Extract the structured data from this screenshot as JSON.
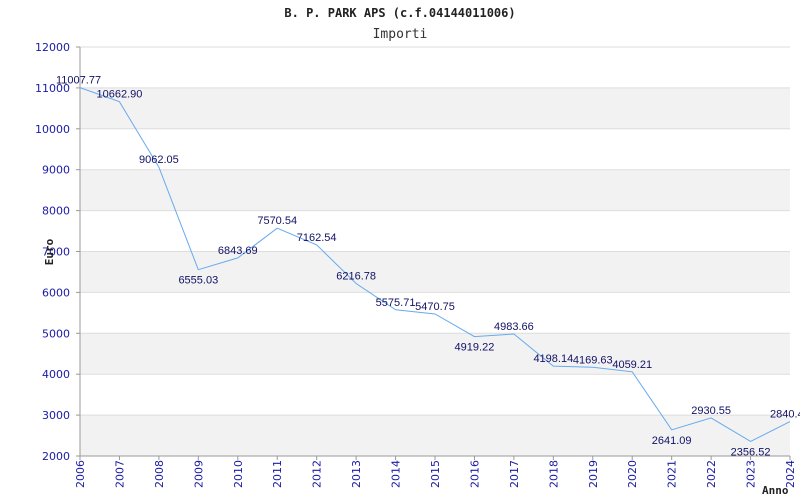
{
  "chart_data": {
    "type": "line",
    "title": "B. P. PARK APS (c.f.04144011006)",
    "subtitle": "Importi",
    "xlabel": "Anno",
    "ylabel": "Euro",
    "categories": [
      "2006",
      "2007",
      "2008",
      "2009",
      "2010",
      "2011",
      "2012",
      "2013",
      "2014",
      "2015",
      "2016",
      "2017",
      "2018",
      "2019",
      "2020",
      "2021",
      "2022",
      "2023",
      "2024"
    ],
    "values": [
      11007.77,
      10662.9,
      9062.05,
      6555.03,
      6843.69,
      7570.54,
      7162.54,
      6216.78,
      5575.71,
      5470.75,
      4919.22,
      4983.66,
      4198.14,
      4169.63,
      4059.21,
      2641.09,
      2930.55,
      2356.52,
      2840.4
    ],
    "value_labels": [
      "11007.77",
      "10662.90",
      "9062.05",
      "6555.03",
      "6843.69",
      "7570.54",
      "7162.54",
      "6216.78",
      "5575.71",
      "5470.75",
      "4919.22",
      "4983.66",
      "4198.14",
      "4169.63",
      "4059.21",
      "2641.09",
      "2930.55",
      "2356.52",
      "2840.4"
    ],
    "ylim": [
      2000,
      12000
    ],
    "yticks": [
      2000,
      3000,
      4000,
      5000,
      6000,
      7000,
      8000,
      9000,
      10000,
      11000,
      12000
    ],
    "ytick_labels": [
      "2000",
      "3000",
      "4000",
      "5000",
      "6000",
      "7000",
      "8000",
      "9000",
      "10000",
      "11000",
      "12000"
    ],
    "grid": true,
    "colors": {
      "line": "#66aaee",
      "band": "#f2f2f2",
      "grid": "#dddddd",
      "tick_text": "#1a1aa6",
      "label_text": "#111166"
    }
  }
}
